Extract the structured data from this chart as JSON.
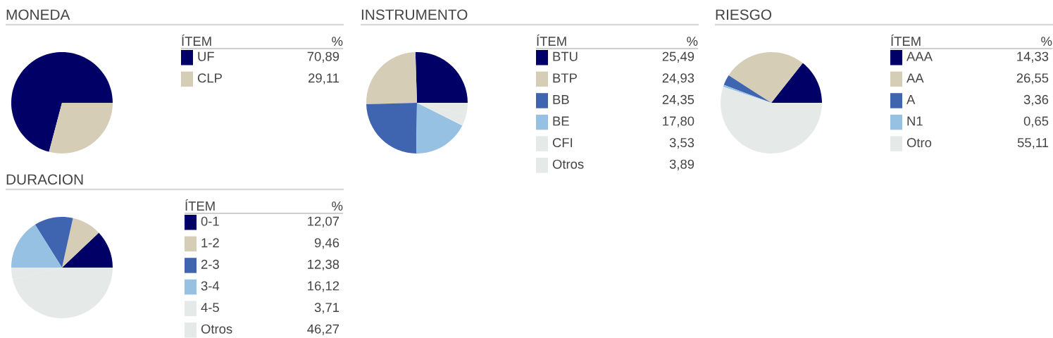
{
  "chart_data": [
    {
      "type": "pie",
      "title": "MONEDA",
      "legend_title": "ÍTEM",
      "annotations": [
        "%"
      ],
      "legend": "right",
      "categories": [
        "UF",
        "CLP"
      ],
      "values": [
        70.89,
        29.11
      ],
      "value_labels": [
        "70,89",
        "29,11"
      ],
      "colors": [
        "#000066",
        "#d5cdb5"
      ]
    },
    {
      "type": "pie",
      "title": "INSTRUMENTO",
      "legend_title": "ÍTEM",
      "annotations": [
        "%"
      ],
      "legend": "right",
      "categories": [
        "BTU",
        "BTP",
        "BB",
        "BE",
        "CFI",
        "Otros"
      ],
      "values": [
        25.49,
        24.93,
        24.35,
        17.8,
        3.53,
        3.89
      ],
      "value_labels": [
        "25,49",
        "24,93",
        "24,35",
        "17,80",
        "3,53",
        "3,89"
      ],
      "colors": [
        "#000066",
        "#d5cdb5",
        "#4065b0",
        "#97c1e3",
        "#e5e9e8",
        "#e5e9e8"
      ]
    },
    {
      "type": "pie",
      "title": "RIESGO",
      "legend_title": "ÍTEM",
      "annotations": [
        "%"
      ],
      "legend": "right",
      "categories": [
        "AAA",
        "AA",
        "A",
        "N1",
        "Otro"
      ],
      "values": [
        14.33,
        26.55,
        3.36,
        0.65,
        55.11
      ],
      "value_labels": [
        "14,33",
        "26,55",
        "3,36",
        "0,65",
        "55,11"
      ],
      "colors": [
        "#000066",
        "#d5cdb5",
        "#4065b0",
        "#97c1e3",
        "#e5e9e8"
      ]
    },
    {
      "type": "pie",
      "title": "DURACION",
      "legend_title": "ÍTEM",
      "annotations": [
        "%"
      ],
      "legend": "right",
      "categories": [
        "0-1",
        "1-2",
        "2-3",
        "3-4",
        "4-5",
        "Otros"
      ],
      "values": [
        12.07,
        9.46,
        12.38,
        16.12,
        3.71,
        46.27
      ],
      "value_labels": [
        "12,07",
        "9,46",
        "12,38",
        "16,12",
        "3,71",
        "46,27"
      ],
      "colors": [
        "#000066",
        "#d5cdb5",
        "#4065b0",
        "#97c1e3",
        "#e5e9e8",
        "#e5e9e8"
      ]
    }
  ]
}
